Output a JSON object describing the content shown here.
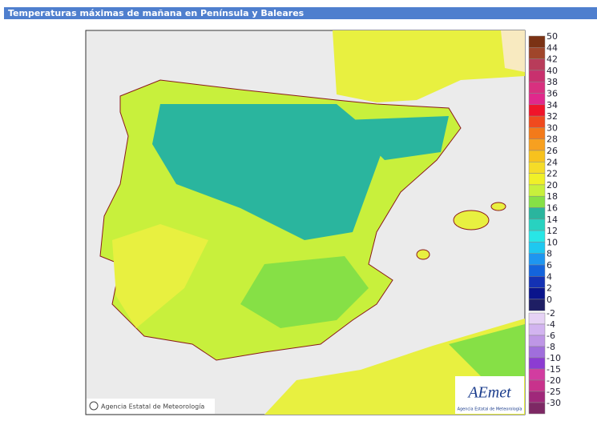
{
  "header": {
    "title": "Temperaturas máximas de mañana en Península y Baleares"
  },
  "map": {
    "credit": "Agencia Estatal de Meteorología"
  },
  "logo": {
    "name": "AEmet",
    "subtitle": "Agencia Estatal de Meteorología"
  },
  "legend": {
    "upper": [
      {
        "label": 50,
        "color": "#7b3214"
      },
      {
        "label": 44,
        "color": "#a0462b"
      },
      {
        "label": 42,
        "color": "#b83c5a"
      },
      {
        "label": 40,
        "color": "#c8306e"
      },
      {
        "label": 38,
        "color": "#d8307f"
      },
      {
        "label": 36,
        "color": "#e0288c"
      },
      {
        "label": 34,
        "color": "#f0142a"
      },
      {
        "label": 32,
        "color": "#f04a1e"
      },
      {
        "label": 30,
        "color": "#f37a1a"
      },
      {
        "label": 28,
        "color": "#f7a020"
      },
      {
        "label": 26,
        "color": "#f7c21e"
      },
      {
        "label": 24,
        "color": "#f5dc28"
      },
      {
        "label": 22,
        "color": "#f0f028"
      },
      {
        "label": 20,
        "color": "#c8f03c"
      },
      {
        "label": 18,
        "color": "#86e046"
      },
      {
        "label": 16,
        "color": "#2ab59e"
      },
      {
        "label": 14,
        "color": "#28d2c0"
      },
      {
        "label": 12,
        "color": "#28e6e6"
      },
      {
        "label": 10,
        "color": "#1ec8f0"
      },
      {
        "label": 8,
        "color": "#1e96f0"
      },
      {
        "label": 6,
        "color": "#1464dc"
      },
      {
        "label": 4,
        "color": "#1432b4"
      },
      {
        "label": 2,
        "color": "#0a148c"
      },
      {
        "label": 0,
        "color": "#1e1e64"
      }
    ],
    "lower": [
      {
        "label": -2,
        "color": "#e6d2f5"
      },
      {
        "label": -4,
        "color": "#d2b4f0"
      },
      {
        "label": -6,
        "color": "#be96e6"
      },
      {
        "label": -8,
        "color": "#a06edc"
      },
      {
        "label": -10,
        "color": "#8c3cd2"
      },
      {
        "label": -15,
        "color": "#d23ca0"
      },
      {
        "label": -20,
        "color": "#c8328c"
      },
      {
        "label": -25,
        "color": "#a0287a"
      },
      {
        "label": -30,
        "color": "#7d2864"
      }
    ]
  }
}
